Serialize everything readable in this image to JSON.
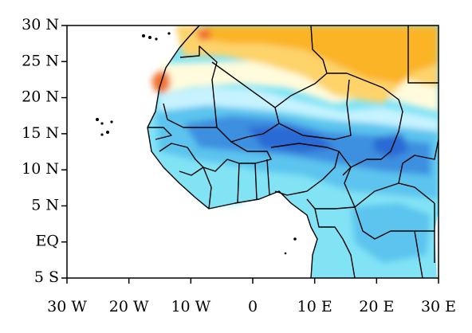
{
  "map": {
    "x_axis": {
      "ticks": [
        "30 W",
        "20 W",
        "10 W",
        "0",
        "10 E",
        "20 E",
        "30 E"
      ],
      "values": [
        -30,
        -20,
        -10,
        0,
        10,
        20,
        30
      ]
    },
    "y_axis": {
      "ticks": [
        "30 N",
        "25 N",
        "20 N",
        "15 N",
        "10 N",
        "5 N",
        "EQ",
        "5 S"
      ],
      "values": [
        30,
        25,
        20,
        15,
        10,
        5,
        0,
        -5
      ]
    },
    "extent": {
      "lon": [
        -30,
        30
      ],
      "lat": [
        -5,
        30
      ]
    },
    "colors": {
      "frame": "#000000",
      "ocean": "#ffffff",
      "dark_orange": "#f06f2a",
      "orange": "#fbb427",
      "light_orange": "#fdd36a",
      "cream": "#fffbdc",
      "pale_cyan": "#c7f3ff",
      "cyan": "#82e3f5",
      "light_blue": "#5cc4ee",
      "mid_blue": "#3d8fe0",
      "dark_blue": "#2b6ad4",
      "border": "#000000"
    }
  }
}
